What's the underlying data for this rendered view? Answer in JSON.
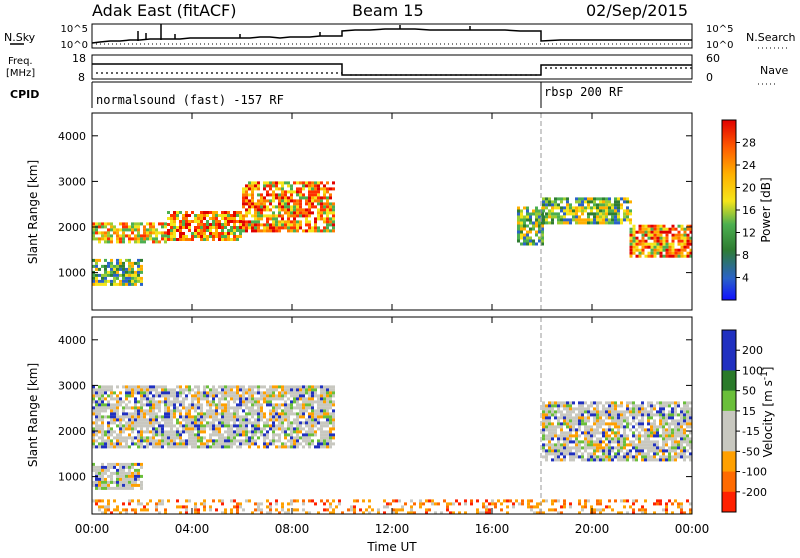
{
  "header": {
    "station": "Adak East (fitACF)",
    "beam": "Beam 15",
    "date": "02/Sep/2015"
  },
  "nsky_panel": {
    "left_label": "N.Sky",
    "right_label": "N.Search",
    "left_ticks": [
      "10^5",
      "10^0"
    ],
    "right_ticks": [
      "10^5",
      "10^0"
    ]
  },
  "freq_panel": {
    "left_label_line1": "Freq.",
    "left_label_line2": "[MHz]",
    "right_label": "Nave",
    "left_ticks": [
      "18",
      "8"
    ],
    "right_ticks": [
      "60",
      "0"
    ]
  },
  "cpid_panel": {
    "label": "CPID",
    "modes": [
      "normalsound (fast) -157 RF",
      "rbsp 200 RF"
    ]
  },
  "x_axis": {
    "ticks": [
      "00:00",
      "04:00",
      "08:00",
      "12:00",
      "16:00",
      "20:00",
      "00:00"
    ],
    "label": "Time UT"
  },
  "chart_data": [
    {
      "type": "heatmap",
      "title": "",
      "ylabel": "Slant Range [km]",
      "yticks": [
        "1000",
        "2000",
        "3000",
        "4000"
      ],
      "ylim": [
        180,
        4500
      ],
      "xlim_hours": [
        0,
        24
      ],
      "colorbar": {
        "label": "Power [dB]",
        "ticks": [
          "4",
          "8",
          "12",
          "16",
          "20",
          "24",
          "28"
        ],
        "colors": [
          "#1010ff",
          "#2a62c8",
          "#2e7d32",
          "#4caf50",
          "#9acd32",
          "#f5e51a",
          "#ffb000",
          "#ff7a00",
          "#ff3000",
          "#e00000"
        ]
      },
      "bands": [
        {
          "t": [
            0.0,
            3.0
          ],
          "range": [
            1650,
            2100
          ],
          "value": "medium-high"
        },
        {
          "t": [
            3.0,
            6.0
          ],
          "range": [
            1750,
            2350
          ],
          "value": "high"
        },
        {
          "t": [
            6.0,
            9.7
          ],
          "range": [
            1900,
            3000
          ],
          "value": "high"
        },
        {
          "t": [
            0.0,
            2.0
          ],
          "range": [
            750,
            1300
          ],
          "value": "medium"
        },
        {
          "t": [
            17.0,
            18.0
          ],
          "range": [
            1650,
            2450
          ],
          "value": "medium"
        },
        {
          "t": [
            18.0,
            21.5
          ],
          "range": [
            2100,
            2650
          ],
          "value": "medium"
        },
        {
          "t": [
            21.5,
            24.0
          ],
          "range": [
            1350,
            2050
          ],
          "value": "high"
        }
      ]
    },
    {
      "type": "heatmap",
      "title": "",
      "ylabel": "Slant Range [km]",
      "yticks": [
        "1000",
        "2000",
        "3000",
        "4000"
      ],
      "ylim": [
        180,
        4500
      ],
      "xlim_hours": [
        0,
        24
      ],
      "colorbar": {
        "label": "Velocity [m s^-1]",
        "ticks": [
          "200",
          "100",
          "50",
          "15",
          "-15",
          "-50",
          "-100",
          "-200"
        ],
        "colors": [
          "#2030c0",
          "#2a7a2a",
          "#6abf3a",
          "#c8c8c0",
          "#c8c8c0",
          "#ffa000",
          "#ff6a00",
          "#ff2000"
        ]
      },
      "bands": [
        {
          "t": [
            0.0,
            9.7
          ],
          "range": [
            1650,
            3000
          ],
          "value": "near-zero"
        },
        {
          "t": [
            0.0,
            2.0
          ],
          "range": [
            750,
            1300
          ],
          "value": "near-zero"
        },
        {
          "t": [
            18.0,
            24.0
          ],
          "range": [
            1350,
            2650
          ],
          "value": "near-zero"
        },
        {
          "t": [
            0.0,
            24.0
          ],
          "range": [
            180,
            500
          ],
          "value": "negative"
        }
      ]
    }
  ]
}
